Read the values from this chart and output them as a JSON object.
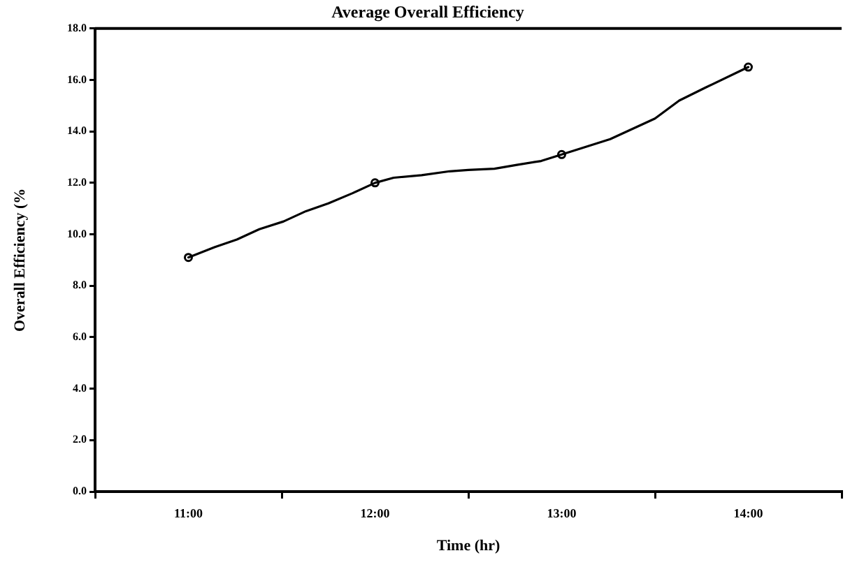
{
  "chart_data": {
    "type": "line",
    "title": "Average Overall Efficiency",
    "xlabel": "Time (hr)",
    "ylabel": "Overall Efficiency (%",
    "xlim": [
      10.5,
      14.5
    ],
    "xticks": [
      {
        "value": 10.5,
        "label": null
      },
      {
        "value": 11,
        "label": "11:00"
      },
      {
        "value": 11.5,
        "label": null
      },
      {
        "value": 12,
        "label": "12:00"
      },
      {
        "value": 12.5,
        "label": null
      },
      {
        "value": 13,
        "label": "13:00"
      },
      {
        "value": 13.5,
        "label": null
      },
      {
        "value": 14,
        "label": "14:00"
      },
      {
        "value": 14.5,
        "label": null
      }
    ],
    "ylim": [
      0,
      18
    ],
    "yticks": [
      {
        "value": 0,
        "label": "0.0"
      },
      {
        "value": 2,
        "label": "2.0"
      },
      {
        "value": 4,
        "label": "4.0"
      },
      {
        "value": 6,
        "label": "6.0"
      },
      {
        "value": 8,
        "label": "8.0"
      },
      {
        "value": 10,
        "label": "10.0"
      },
      {
        "value": 12,
        "label": "12.0"
      },
      {
        "value": 14,
        "label": "14.0"
      },
      {
        "value": 16,
        "label": "16.0"
      },
      {
        "value": 18,
        "label": "18.0"
      }
    ],
    "grid": false,
    "legend": false,
    "series": [
      {
        "color": "#000000",
        "marker": "none",
        "x": [
          11,
          11.14,
          11.26,
          11.38,
          11.51,
          11.63,
          11.75,
          11.88,
          12,
          12.1,
          12.25,
          12.4,
          12.5,
          12.64,
          12.76,
          12.89,
          13,
          13.26,
          13.5,
          13.63,
          13.77,
          14
        ],
        "values": [
          9.1,
          9.5,
          9.8,
          10.2,
          10.5,
          10.9,
          11.2,
          11.6,
          12.0,
          12.2,
          12.3,
          12.45,
          12.5,
          12.55,
          12.7,
          12.85,
          13.1,
          13.7,
          14.5,
          15.2,
          15.7,
          16.5
        ]
      },
      {
        "type": "scatter",
        "color": "#000000",
        "marker": "circle",
        "x": [
          11,
          12,
          13,
          14
        ],
        "values": [
          9.1,
          12.0,
          13.1,
          16.5
        ]
      }
    ]
  }
}
